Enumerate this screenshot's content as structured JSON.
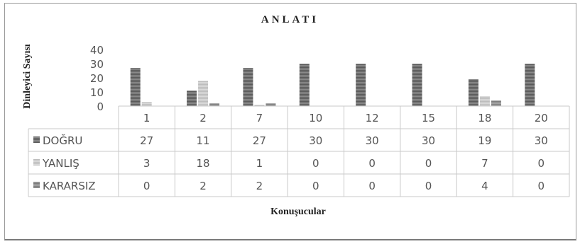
{
  "chart_data": {
    "type": "bar",
    "title": "ANLATI",
    "ylabel": "Dinleyici Sayısı",
    "xlabel": "Konuşucular",
    "categories": [
      "1",
      "2",
      "7",
      "10",
      "12",
      "15",
      "18",
      "20"
    ],
    "ylim": [
      0,
      40
    ],
    "yticks": [
      "0",
      "10",
      "20",
      "30",
      "40"
    ],
    "grid": false,
    "legend": "data-table",
    "series": [
      {
        "name": "DOĞRU",
        "values": [
          27,
          11,
          27,
          30,
          30,
          30,
          19,
          30
        ],
        "color": "#6b6b6b"
      },
      {
        "name": "YANLIŞ",
        "values": [
          3,
          18,
          1,
          0,
          0,
          0,
          7,
          0
        ],
        "color": "#c8c8c8"
      },
      {
        "name": "KARARSIZ",
        "values": [
          0,
          2,
          2,
          0,
          0,
          0,
          4,
          0
        ],
        "color": "#8a8a8a"
      }
    ]
  }
}
